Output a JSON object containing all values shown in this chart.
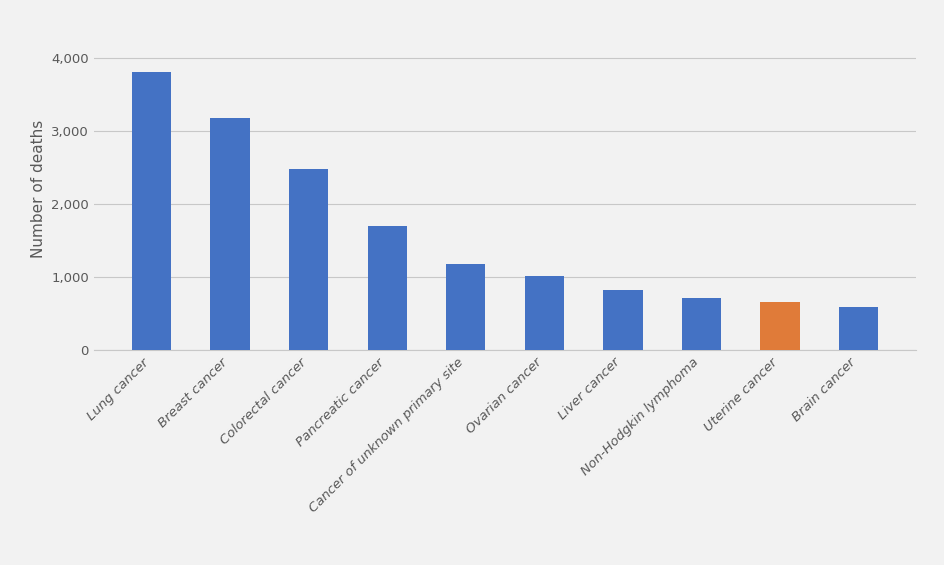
{
  "categories": [
    "Lung cancer",
    "Breast cancer",
    "Colorectal cancer",
    "Pancreatic cancer",
    "Cancer of unknown primary site",
    "Ovarian cancer",
    "Liver cancer",
    "Non-Hodgkin lymphoma",
    "Uterine cancer",
    "Brain cancer"
  ],
  "values": [
    3800,
    3180,
    2480,
    1700,
    1175,
    1010,
    820,
    710,
    660,
    590
  ],
  "bar_colors": [
    "#4472c4",
    "#4472c4",
    "#4472c4",
    "#4472c4",
    "#4472c4",
    "#4472c4",
    "#4472c4",
    "#4472c4",
    "#e07b39",
    "#4472c4"
  ],
  "ylabel": "Number of deaths",
  "ylim": [
    0,
    4400
  ],
  "yticks": [
    0,
    1000,
    2000,
    3000,
    4000
  ],
  "ytick_labels": [
    "0",
    "1,000",
    "2,000",
    "3,000",
    "4,000"
  ],
  "background_color": "#f2f2f2",
  "plot_bg_color": "#f2f2f2",
  "grid_color": "#c8c8c8",
  "ylabel_fontsize": 11,
  "tick_fontsize": 9.5,
  "bar_width": 0.5
}
